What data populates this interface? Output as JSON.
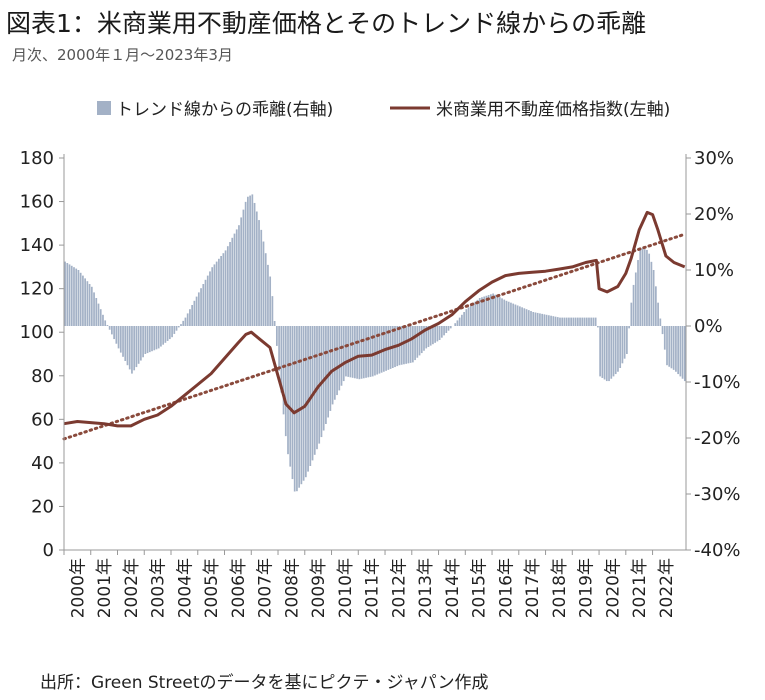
{
  "title": "図表1：米商業用不動産価格とそのトレンド線からの乖離",
  "subtitle": "月次、2000年１月～2023年3月",
  "source": "出所：Green Streetのデータを基にピクテ・ジャパン作成",
  "colors": {
    "bars": "#a3b1c6",
    "line": "#7b3a30",
    "trend": "#8a4a3c",
    "axis": "#999999"
  },
  "chart_data": {
    "type": "bar+line",
    "legend": [
      {
        "label": "トレンド線からの乖離(右軸)",
        "marker": "bar"
      },
      {
        "label": "米商業用不動産価格指数(左軸)",
        "marker": "line"
      }
    ],
    "legend_position": "top",
    "left_axis": {
      "ticks": [
        "0",
        "20",
        "40",
        "60",
        "80",
        "100",
        "120",
        "140",
        "160",
        "180"
      ],
      "range": [
        0,
        180
      ]
    },
    "right_axis": {
      "ticks": [
        "-40%",
        "-30%",
        "-20%",
        "-10%",
        "0%",
        "10%",
        "20%",
        "30%"
      ],
      "range": [
        -40,
        30
      ]
    },
    "x_categories": [
      "2000年",
      "2001年",
      "2002年",
      "2003年",
      "2004年",
      "2005年",
      "2006年",
      "2007年",
      "2008年",
      "2009年",
      "2010年",
      "2011年",
      "2012年",
      "2013年",
      "2014年",
      "2015年",
      "2016年",
      "2017年",
      "2018年",
      "2019年",
      "2020年",
      "2021年",
      "2022年"
    ],
    "deviation_from_trend_pct": [
      {
        "t": 2000.0,
        "v": 11.5
      },
      {
        "t": 2000.5,
        "v": 10.0
      },
      {
        "t": 2001.0,
        "v": 7.0
      },
      {
        "t": 2001.5,
        "v": 1.0
      },
      {
        "t": 2002.0,
        "v": -4.0
      },
      {
        "t": 2002.5,
        "v": -8.5
      },
      {
        "t": 2003.0,
        "v": -5.0
      },
      {
        "t": 2003.5,
        "v": -4.0
      },
      {
        "t": 2004.0,
        "v": -2.0
      },
      {
        "t": 2004.5,
        "v": 1.5
      },
      {
        "t": 2005.0,
        "v": 6.0
      },
      {
        "t": 2005.5,
        "v": 10.5
      },
      {
        "t": 2006.0,
        "v": 13.5
      },
      {
        "t": 2006.5,
        "v": 18.0
      },
      {
        "t": 2006.8,
        "v": 23.0
      },
      {
        "t": 2007.0,
        "v": 23.5
      },
      {
        "t": 2007.3,
        "v": 18.0
      },
      {
        "t": 2007.7,
        "v": 8.0
      },
      {
        "t": 2008.0,
        "v": -8.0
      },
      {
        "t": 2008.3,
        "v": -22.0
      },
      {
        "t": 2008.6,
        "v": -30.0
      },
      {
        "t": 2009.0,
        "v": -27.0
      },
      {
        "t": 2009.5,
        "v": -21.0
      },
      {
        "t": 2010.0,
        "v": -14.0
      },
      {
        "t": 2010.5,
        "v": -9.0
      },
      {
        "t": 2011.0,
        "v": -9.5
      },
      {
        "t": 2011.5,
        "v": -9.0
      },
      {
        "t": 2012.0,
        "v": -8.0
      },
      {
        "t": 2012.5,
        "v": -7.0
      },
      {
        "t": 2013.0,
        "v": -6.5
      },
      {
        "t": 2013.5,
        "v": -4.0
      },
      {
        "t": 2014.0,
        "v": -2.5
      },
      {
        "t": 2014.5,
        "v": 0.0
      },
      {
        "t": 2015.0,
        "v": 3.0
      },
      {
        "t": 2015.5,
        "v": 5.0
      },
      {
        "t": 2016.0,
        "v": 5.8
      },
      {
        "t": 2016.5,
        "v": 4.5
      },
      {
        "t": 2017.0,
        "v": 3.5
      },
      {
        "t": 2017.5,
        "v": 2.5
      },
      {
        "t": 2018.0,
        "v": 2.0
      },
      {
        "t": 2018.5,
        "v": 1.5
      },
      {
        "t": 2019.0,
        "v": 1.5
      },
      {
        "t": 2019.5,
        "v": 1.5
      },
      {
        "t": 2019.9,
        "v": 1.5
      },
      {
        "t": 2020.0,
        "v": -9.0
      },
      {
        "t": 2020.3,
        "v": -10.0
      },
      {
        "t": 2020.7,
        "v": -8.0
      },
      {
        "t": 2021.0,
        "v": -5.0
      },
      {
        "t": 2021.2,
        "v": 6.0
      },
      {
        "t": 2021.5,
        "v": 14.0
      },
      {
        "t": 2021.8,
        "v": 13.5
      },
      {
        "t": 2022.0,
        "v": 10.0
      },
      {
        "t": 2022.2,
        "v": 3.0
      },
      {
        "t": 2022.5,
        "v": -7.0
      },
      {
        "t": 2022.8,
        "v": -8.0
      },
      {
        "t": 2023.2,
        "v": -10.0
      }
    ],
    "price_index": [
      {
        "t": 2000.0,
        "v": 58
      },
      {
        "t": 2000.5,
        "v": 59
      },
      {
        "t": 2001.0,
        "v": 58.5
      },
      {
        "t": 2001.5,
        "v": 58
      },
      {
        "t": 2002.0,
        "v": 57
      },
      {
        "t": 2002.5,
        "v": 57
      },
      {
        "t": 2003.0,
        "v": 60
      },
      {
        "t": 2003.5,
        "v": 62
      },
      {
        "t": 2004.0,
        "v": 66
      },
      {
        "t": 2004.5,
        "v": 71
      },
      {
        "t": 2005.0,
        "v": 76
      },
      {
        "t": 2005.5,
        "v": 81
      },
      {
        "t": 2006.0,
        "v": 88
      },
      {
        "t": 2006.5,
        "v": 95
      },
      {
        "t": 2006.8,
        "v": 99
      },
      {
        "t": 2007.0,
        "v": 100
      },
      {
        "t": 2007.3,
        "v": 97
      },
      {
        "t": 2007.7,
        "v": 93
      },
      {
        "t": 2008.0,
        "v": 80
      },
      {
        "t": 2008.3,
        "v": 67
      },
      {
        "t": 2008.6,
        "v": 63
      },
      {
        "t": 2009.0,
        "v": 66
      },
      {
        "t": 2009.5,
        "v": 75
      },
      {
        "t": 2010.0,
        "v": 82
      },
      {
        "t": 2010.5,
        "v": 86
      },
      {
        "t": 2011.0,
        "v": 89
      },
      {
        "t": 2011.5,
        "v": 89.5
      },
      {
        "t": 2012.0,
        "v": 92
      },
      {
        "t": 2012.5,
        "v": 94
      },
      {
        "t": 2013.0,
        "v": 97
      },
      {
        "t": 2013.5,
        "v": 101
      },
      {
        "t": 2014.0,
        "v": 104
      },
      {
        "t": 2014.5,
        "v": 108
      },
      {
        "t": 2015.0,
        "v": 114
      },
      {
        "t": 2015.5,
        "v": 119
      },
      {
        "t": 2016.0,
        "v": 123
      },
      {
        "t": 2016.5,
        "v": 126
      },
      {
        "t": 2017.0,
        "v": 127
      },
      {
        "t": 2017.5,
        "v": 127.5
      },
      {
        "t": 2018.0,
        "v": 128
      },
      {
        "t": 2018.5,
        "v": 129
      },
      {
        "t": 2019.0,
        "v": 130
      },
      {
        "t": 2019.5,
        "v": 132
      },
      {
        "t": 2019.9,
        "v": 133
      },
      {
        "t": 2020.0,
        "v": 120
      },
      {
        "t": 2020.3,
        "v": 118.5
      },
      {
        "t": 2020.7,
        "v": 121
      },
      {
        "t": 2021.0,
        "v": 127
      },
      {
        "t": 2021.2,
        "v": 134
      },
      {
        "t": 2021.5,
        "v": 147
      },
      {
        "t": 2021.8,
        "v": 155
      },
      {
        "t": 2022.0,
        "v": 154
      },
      {
        "t": 2022.2,
        "v": 147
      },
      {
        "t": 2022.5,
        "v": 135
      },
      {
        "t": 2022.8,
        "v": 132
      },
      {
        "t": 2023.2,
        "v": 130
      }
    ],
    "trend_line": [
      {
        "t": 2000.0,
        "v": 51
      },
      {
        "t": 2023.2,
        "v": 145
      }
    ]
  }
}
